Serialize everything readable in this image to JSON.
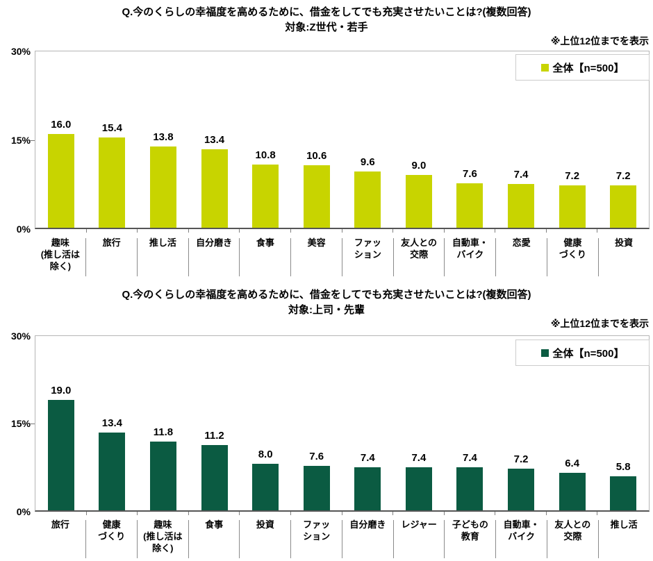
{
  "chart_data": [
    {
      "type": "bar",
      "title": "Q.今のくらしの幸福度を高めるために、借金をしてでも充実させたいことは?(複数回答)",
      "subtitle": "対象:Z世代・若手",
      "note": "※上位12位までを表示",
      "legend": "全体【n=500】",
      "bar_color": "#c8d400",
      "ylim": [
        0,
        30
      ],
      "yticks": [
        "30%",
        "15%",
        "0%"
      ],
      "grid": "off",
      "legend_position": "top-right-inside",
      "categories": [
        "趣味(推し活は除く)",
        "旅行",
        "推し活",
        "自分磨き",
        "食事",
        "美容",
        "ファッション",
        "友人との交際",
        "自動車・バイク",
        "恋愛",
        "健康づくり",
        "投資"
      ],
      "category_lines": [
        [
          "趣味",
          "(推し活は",
          "除く)"
        ],
        [
          "旅行"
        ],
        [
          "推し活"
        ],
        [
          "自分磨き"
        ],
        [
          "食事"
        ],
        [
          "美容"
        ],
        [
          "ファッ",
          "ション"
        ],
        [
          "友人との",
          "交際"
        ],
        [
          "自動車・",
          "バイク"
        ],
        [
          "恋愛"
        ],
        [
          "健康",
          "づくり"
        ],
        [
          "投資"
        ]
      ],
      "values": [
        16.0,
        15.4,
        13.8,
        13.4,
        10.8,
        10.6,
        9.6,
        9.0,
        7.6,
        7.4,
        7.2,
        7.2
      ]
    },
    {
      "type": "bar",
      "title": "Q.今のくらしの幸福度を高めるために、借金をしてでも充実させたいことは?(複数回答)",
      "subtitle": "対象:上司・先輩",
      "note": "※上位12位までを表示",
      "legend": "全体【n=500】",
      "bar_color": "#0b5b42",
      "ylim": [
        0,
        30
      ],
      "yticks": [
        "30%",
        "15%",
        "0%"
      ],
      "grid": "off",
      "legend_position": "top-right-inside",
      "categories": [
        "旅行",
        "健康づくり",
        "趣味(推し活は除く)",
        "食事",
        "投資",
        "ファッション",
        "自分磨き",
        "レジャー",
        "子どもの教育",
        "自動車・バイク",
        "友人との交際",
        "推し活"
      ],
      "category_lines": [
        [
          "旅行"
        ],
        [
          "健康",
          "づくり"
        ],
        [
          "趣味",
          "(推し活は",
          "除く)"
        ],
        [
          "食事"
        ],
        [
          "投資"
        ],
        [
          "ファッ",
          "ション"
        ],
        [
          "自分磨き"
        ],
        [
          "レジャー"
        ],
        [
          "子どもの",
          "教育"
        ],
        [
          "自動車・",
          "バイク"
        ],
        [
          "友人との",
          "交際"
        ],
        [
          "推し活"
        ]
      ],
      "values": [
        19.0,
        13.4,
        11.8,
        11.2,
        8.0,
        7.6,
        7.4,
        7.4,
        7.4,
        7.2,
        6.4,
        5.8
      ]
    }
  ]
}
